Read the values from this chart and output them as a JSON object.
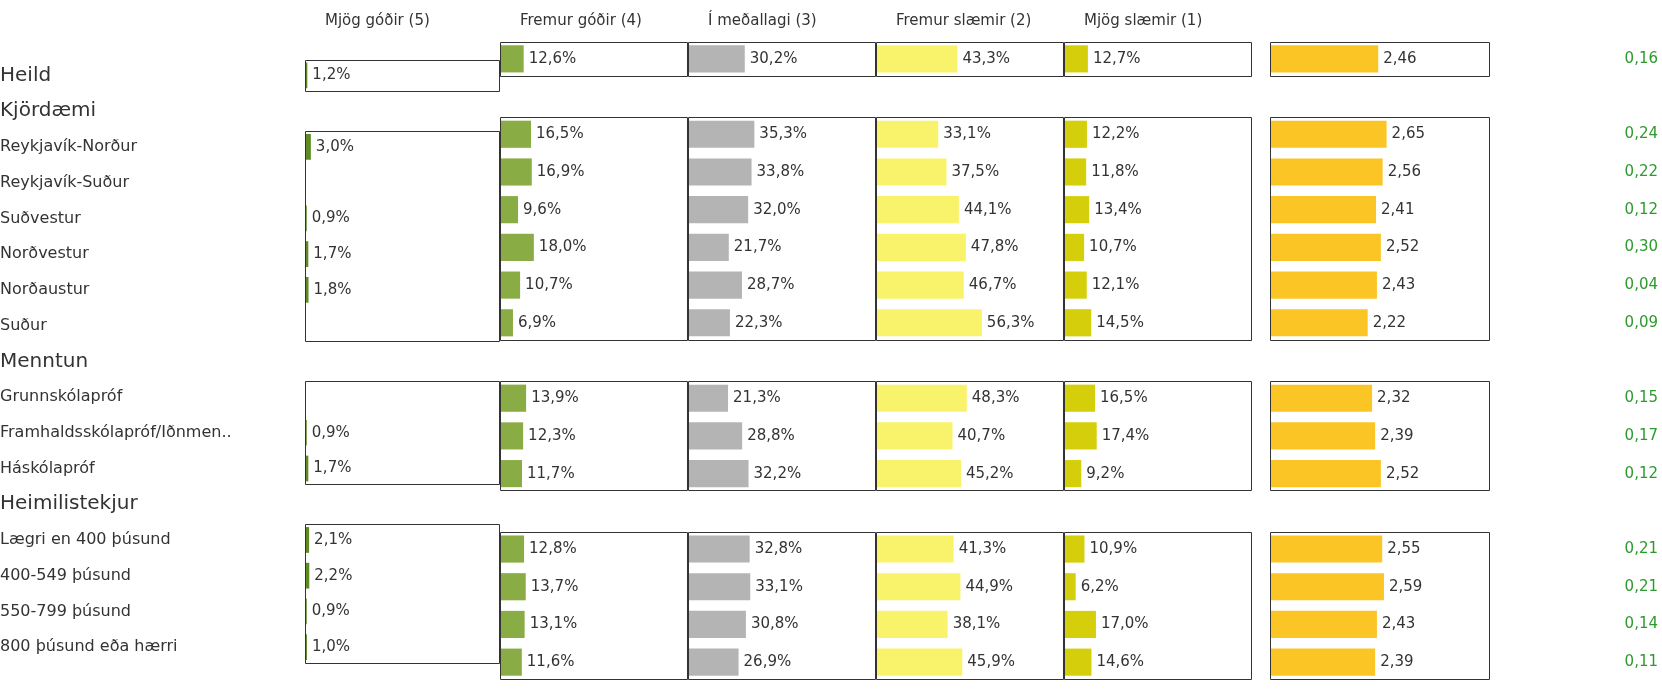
{
  "chart_data": [
    {
      "type": "bar",
      "orientation": "horizontal",
      "title": "Mjög góðir (5)",
      "tick_labels": "y",
      "color": "#5e8a24",
      "xlim": [
        0,
        100
      ],
      "categories": [
        "Heild",
        "Kjördæmi",
        "Reykjavík-Norður",
        "Reykjavík-Suður",
        "Suðvestur",
        "Norðvestur",
        "Norðaustur",
        "Suður",
        "Menntun",
        "Grunnskólapróf",
        "Framhaldsskólapróf/Iðnmen..",
        "Háskólapróf",
        "Heimilistekjur",
        "Lægri en 400 þúsund",
        "400-549 þúsund",
        "550-799 þúsund",
        "800 þúsund eða hærri"
      ],
      "values": [
        1.2,
        null,
        3.0,
        null,
        0.9,
        1.7,
        1.8,
        null,
        null,
        null,
        0.9,
        1.7,
        null,
        2.1,
        2.2,
        0.9,
        1.0
      ],
      "value_labels": [
        "1,2%",
        null,
        "3,0%",
        null,
        "0,9%",
        "1,7%",
        "1,8%",
        null,
        null,
        null,
        "0,9%",
        "1,7%",
        null,
        "2,1%",
        "2,2%",
        "0,9%",
        "1,0%"
      ]
    },
    {
      "type": "bar",
      "orientation": "horizontal",
      "title": "Fremur góðir (4)",
      "tick_labels": false,
      "color": "#8aac45",
      "xlim": [
        0,
        100
      ],
      "values": [
        12.6,
        null,
        16.5,
        16.9,
        9.6,
        18.0,
        10.7,
        6.9,
        null,
        13.9,
        12.3,
        11.7,
        null,
        12.8,
        13.7,
        13.1,
        11.6
      ],
      "value_labels": [
        "12,6%",
        null,
        "16,5%",
        "16,9%",
        "9,6%",
        "18,0%",
        "10,7%",
        "6,9%",
        null,
        "13,9%",
        "12,3%",
        "11,7%",
        null,
        "12,8%",
        "13,7%",
        "13,1%",
        "11,6%"
      ]
    },
    {
      "type": "bar",
      "orientation": "horizontal",
      "title": "Í meðallagi (3)",
      "tick_labels": false,
      "color": "#b4b4b4",
      "xlim": [
        0,
        100
      ],
      "values": [
        30.2,
        null,
        35.3,
        33.8,
        32.0,
        21.7,
        28.7,
        22.3,
        null,
        21.3,
        28.8,
        32.2,
        null,
        32.8,
        33.1,
        30.8,
        26.9
      ],
      "value_labels": [
        "30,2%",
        null,
        "35,3%",
        "33,8%",
        "32,0%",
        "21,7%",
        "28,7%",
        "22,3%",
        null,
        "21,3%",
        "28,8%",
        "32,2%",
        null,
        "32,8%",
        "33,1%",
        "30,8%",
        "26,9%"
      ]
    },
    {
      "type": "bar",
      "orientation": "horizontal",
      "title": "Fremur slæmir (2)",
      "tick_labels": false,
      "color": "#f8f36b",
      "xlim": [
        0,
        100
      ],
      "values": [
        43.3,
        null,
        33.1,
        37.5,
        44.1,
        47.8,
        46.7,
        56.3,
        null,
        48.3,
        40.7,
        45.2,
        null,
        41.3,
        44.9,
        38.1,
        45.9
      ],
      "value_labels": [
        "43,3%",
        null,
        "33,1%",
        "37,5%",
        "44,1%",
        "47,8%",
        "46,7%",
        "56,3%",
        null,
        "48,3%",
        "40,7%",
        "45,2%",
        null,
        "41,3%",
        "44,9%",
        "38,1%",
        "45,9%"
      ]
    },
    {
      "type": "bar",
      "orientation": "horizontal",
      "title": "Mjög slæmir (1)",
      "tick_labels": false,
      "color": "#d4cf0a",
      "xlim": [
        0,
        100
      ],
      "values": [
        12.7,
        null,
        12.2,
        11.8,
        13.4,
        10.7,
        12.1,
        14.5,
        null,
        16.5,
        17.4,
        9.2,
        null,
        10.9,
        6.2,
        17.0,
        14.6
      ],
      "value_labels": [
        "12,7%",
        null,
        "12,2%",
        "11,8%",
        "13,4%",
        "10,7%",
        "12,1%",
        "14,5%",
        null,
        "16,5%",
        "17,4%",
        "9,2%",
        null,
        "10,9%",
        "6,2%",
        "17,0%",
        "14,6%"
      ]
    },
    {
      "type": "bar",
      "orientation": "horizontal",
      "tick_labels": false,
      "color": "#fbc526",
      "xlim": [
        0,
        5
      ],
      "values": [
        2.46,
        null,
        2.65,
        2.56,
        2.41,
        2.52,
        2.43,
        2.22,
        null,
        2.32,
        2.39,
        2.52,
        null,
        2.55,
        2.59,
        2.43,
        2.39
      ],
      "value_labels": [
        "2,46",
        null,
        "2,65",
        "2,56",
        "2,41",
        "2,52",
        "2,43",
        "2,22",
        null,
        "2,32",
        "2,39",
        "2,52",
        null,
        "2,55",
        "2,59",
        "2,43",
        "2,39"
      ]
    },
    {
      "type": "other",
      "color": "#2e9a2e",
      "values": [
        0.16,
        null,
        0.24,
        0.22,
        0.12,
        0.3,
        0.04,
        0.09,
        null,
        0.15,
        0.17,
        0.12,
        null,
        0.21,
        0.21,
        0.14,
        0.11
      ],
      "value_labels": [
        "0,16",
        null,
        "0,24",
        "0,22",
        "0,12",
        "0,30",
        "0,04",
        "0,09",
        null,
        "0,15",
        "0,17",
        "0,12",
        null,
        "0,21",
        "0,21",
        "0,14",
        "0,11"
      ]
    }
  ]
}
